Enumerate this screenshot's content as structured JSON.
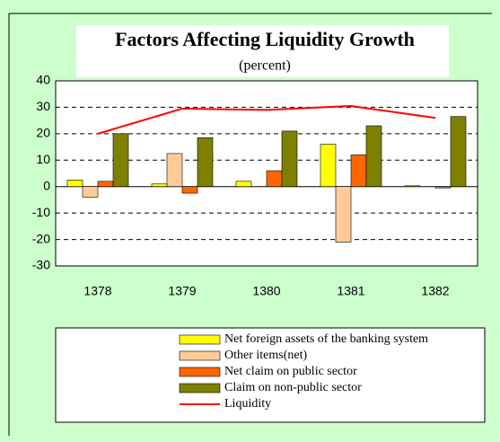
{
  "chart_data": {
    "type": "bar",
    "title": "Factors Affecting Liquidity Growth",
    "subtitle": "(percent)",
    "categories": [
      "1378",
      "1379",
      "1380",
      "1381",
      "1382"
    ],
    "series": [
      {
        "name": "Net foreign assets of the banking system",
        "color": "#ffff00",
        "values": [
          2.5,
          1,
          2,
          16,
          0.3
        ]
      },
      {
        "name": "Other items(net)",
        "color": "#ffcc99",
        "values": [
          -4,
          12.5,
          0,
          -21,
          0
        ]
      },
      {
        "name": "Net claim on public sector",
        "color": "#ff6600",
        "values": [
          2,
          -2.5,
          6,
          12,
          -0.5
        ]
      },
      {
        "name": "Claim on non-public sector",
        "color": "#808000",
        "values": [
          20,
          18.5,
          21,
          23,
          26.5
        ]
      },
      {
        "name": "Liquidity",
        "color": "#ff0000",
        "type": "line",
        "values": [
          20,
          29.5,
          29,
          30.5,
          26
        ]
      }
    ],
    "ylim": [
      -30,
      40
    ],
    "yticks": [
      -30,
      -20,
      -10,
      0,
      10,
      20,
      30,
      40
    ],
    "grid": true
  }
}
